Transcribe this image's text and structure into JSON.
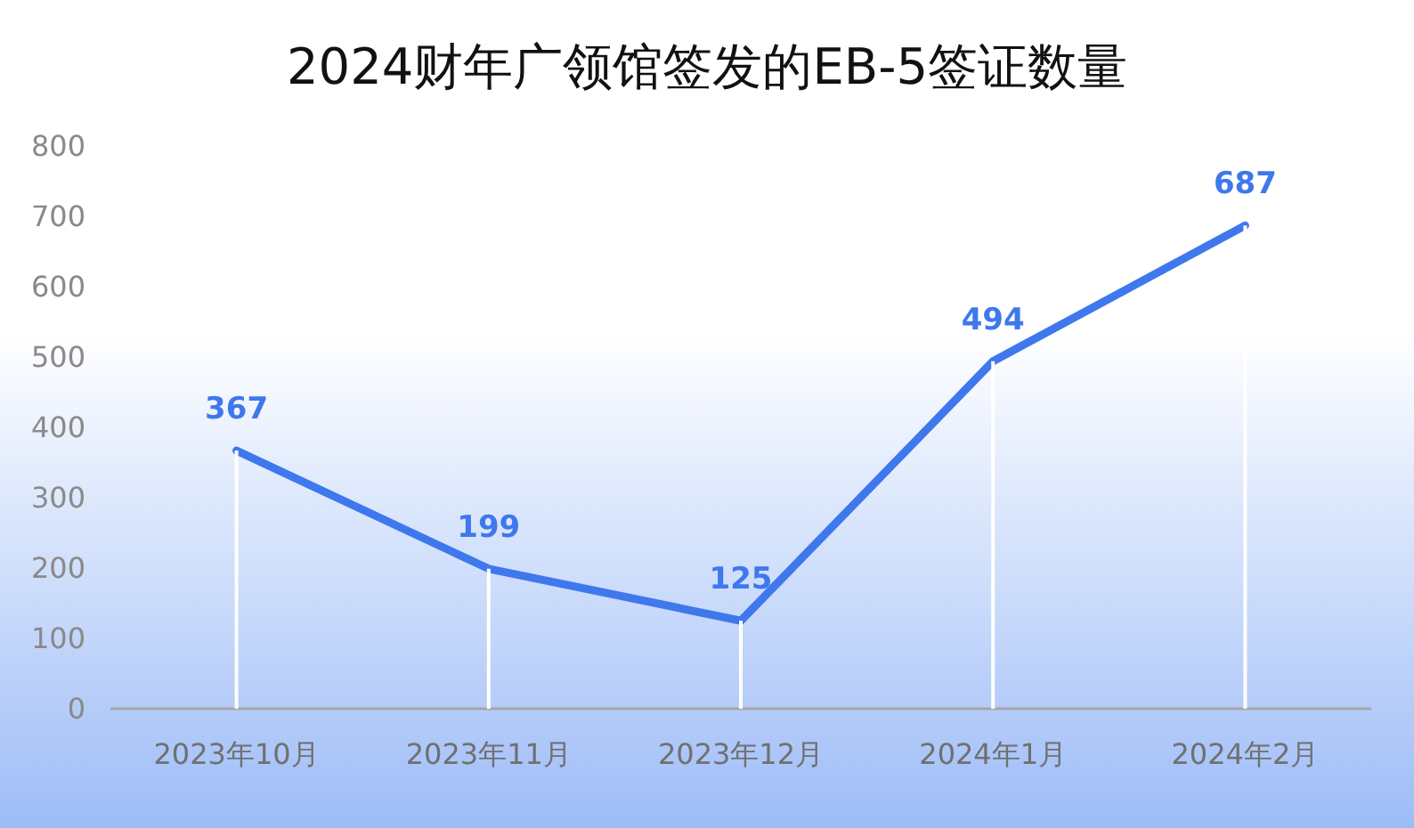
{
  "chart_data": {
    "type": "line",
    "title": "2024财年广领馆签发的EB-5签证数量",
    "categories": [
      "2023年10月",
      "2023年11月",
      "2023年12月",
      "2024年1月",
      "2024年2月"
    ],
    "series": [
      {
        "color": "#3f78ec",
        "values": [
          367,
          199,
          125,
          494,
          687
        ],
        "value_labels": [
          "367",
          "199",
          "125",
          "494",
          "687"
        ]
      },
      {
        "type": "bar",
        "color": "#ffffff",
        "values": [
          367,
          199,
          125,
          494,
          687
        ]
      }
    ],
    "ylim": [
      0,
      800
    ],
    "yticks": [
      0,
      100,
      200,
      300,
      400,
      500,
      600,
      700,
      800
    ],
    "grid": false,
    "marker": "none",
    "line_style": "solid"
  }
}
